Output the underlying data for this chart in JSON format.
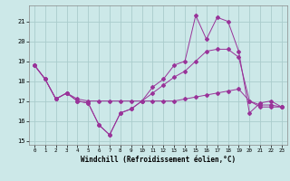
{
  "xlabel": "Windchill (Refroidissement éolien,°C)",
  "background_color": "#cce8e8",
  "grid_color": "#aacccc",
  "line_color": "#993399",
  "xlim": [
    -0.5,
    23.5
  ],
  "ylim": [
    14.8,
    21.8
  ],
  "yticks": [
    15,
    16,
    17,
    18,
    19,
    20,
    21
  ],
  "xticks": [
    0,
    1,
    2,
    3,
    4,
    5,
    6,
    7,
    8,
    9,
    10,
    11,
    12,
    13,
    14,
    15,
    16,
    17,
    18,
    19,
    20,
    21,
    22,
    23
  ],
  "series": [
    {
      "x": [
        0,
        1,
        2,
        3,
        4,
        5,
        6,
        7,
        8,
        9,
        10,
        11,
        12,
        13,
        14,
        15,
        16,
        17,
        18,
        19,
        20,
        21,
        22,
        23
      ],
      "y": [
        18.8,
        18.1,
        17.1,
        17.4,
        17.1,
        17.0,
        17.0,
        17.0,
        17.0,
        17.0,
        17.0,
        17.0,
        17.0,
        17.0,
        17.1,
        17.2,
        17.3,
        17.4,
        17.5,
        17.6,
        17.0,
        16.8,
        16.8,
        16.7
      ]
    },
    {
      "x": [
        0,
        1,
        2,
        3,
        4,
        5,
        6,
        7,
        8,
        9,
        10,
        11,
        12,
        13,
        14,
        15,
        16,
        17,
        18,
        19,
        20,
        21,
        22,
        23
      ],
      "y": [
        18.8,
        18.1,
        17.1,
        17.4,
        17.0,
        16.9,
        15.8,
        15.3,
        16.4,
        16.6,
        17.0,
        17.7,
        18.1,
        18.8,
        19.0,
        21.3,
        20.1,
        21.2,
        21.0,
        19.5,
        16.4,
        16.9,
        17.0,
        16.7
      ]
    },
    {
      "x": [
        0,
        1,
        2,
        3,
        4,
        5,
        6,
        7,
        8,
        9,
        10,
        11,
        12,
        13,
        14,
        15,
        16,
        17,
        18,
        19,
        20,
        21,
        22,
        23
      ],
      "y": [
        18.8,
        18.1,
        17.1,
        17.4,
        17.0,
        16.9,
        15.8,
        15.3,
        16.4,
        16.6,
        17.0,
        17.4,
        17.8,
        18.2,
        18.5,
        19.0,
        19.5,
        19.6,
        19.6,
        19.2,
        17.0,
        16.7,
        16.7,
        16.7
      ]
    }
  ]
}
